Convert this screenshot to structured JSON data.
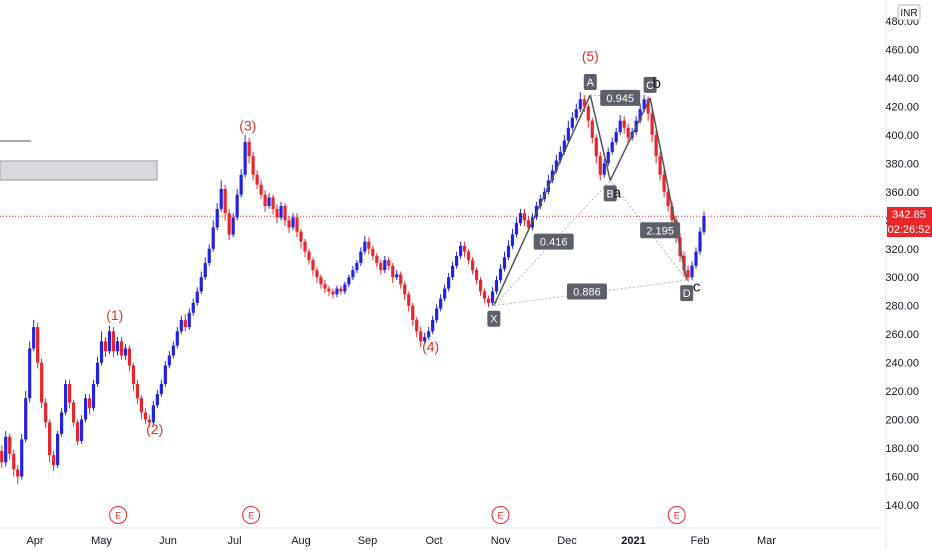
{
  "currency": "INR",
  "price_label": "342.85",
  "countdown_label": "02:26:52",
  "earnings_marker": "E",
  "colors": {
    "up": "#2424e0",
    "down": "#e8262b",
    "harmonic_line": "#555555",
    "harmonic_dotted": "#b3b3b3",
    "wave_label": "#e0332b",
    "price_line": "#e8262b",
    "axis_text": "#131722"
  },
  "chart_data": {
    "type": "candlestick",
    "title": "",
    "x_ticks": [
      "Apr",
      "May",
      "Jun",
      "Jul",
      "Aug",
      "Sep",
      "Oct",
      "Nov",
      "Dec",
      "2021",
      "Feb",
      "Mar"
    ],
    "y_ticks": [
      140,
      160,
      180,
      200,
      220,
      240,
      260,
      280,
      300,
      320,
      340,
      360,
      380,
      400,
      420,
      440,
      460,
      480
    ],
    "ylim": [
      128,
      488
    ],
    "grid": false,
    "last_price": 342.85,
    "elliott_waves": [
      {
        "label": "(1)",
        "month": 1.2,
        "value": 270
      },
      {
        "label": "(2)",
        "month": 1.8,
        "value": 190
      },
      {
        "label": "(3)",
        "month": 3.2,
        "value": 403
      },
      {
        "label": "(4)",
        "month": 5.95,
        "value": 248
      },
      {
        "label": "(5)",
        "month": 8.35,
        "value": 452
      },
      {
        "label": "a",
        "month": 8.75,
        "value": 356
      },
      {
        "label": "b",
        "month": 9.35,
        "value": 433
      },
      {
        "label": "c",
        "month": 9.95,
        "value": 290
      }
    ],
    "harmonic_pattern": {
      "points": [
        {
          "label": "X",
          "month": 6.9,
          "value": 280
        },
        {
          "label": "A",
          "month": 8.35,
          "value": 428
        },
        {
          "label": "B",
          "month": 8.65,
          "value": 368
        },
        {
          "label": "C",
          "month": 9.25,
          "value": 426
        },
        {
          "label": "D",
          "month": 9.8,
          "value": 298
        }
      ],
      "ratios": [
        {
          "label": "0.416",
          "month": 7.8,
          "value": 325
        },
        {
          "label": "0.945",
          "month": 8.8,
          "value": 426
        },
        {
          "label": "2.195",
          "month": 9.4,
          "value": 333
        },
        {
          "label": "0.886",
          "month": 8.3,
          "value": 290
        }
      ]
    },
    "earnings_events": [
      1.25,
      3.25,
      7.0,
      9.65
    ],
    "candles": [
      [
        -0.5,
        178,
        170,
        182,
        166
      ],
      [
        -0.44,
        170,
        188,
        192,
        167
      ],
      [
        -0.38,
        188,
        176,
        190,
        172
      ],
      [
        -0.32,
        176,
        165,
        179,
        160
      ],
      [
        -0.26,
        165,
        160,
        168,
        155
      ],
      [
        -0.2,
        160,
        186,
        190,
        158
      ],
      [
        -0.14,
        186,
        215,
        220,
        184
      ],
      [
        -0.08,
        215,
        250,
        255,
        212
      ],
      [
        -0.02,
        250,
        265,
        270,
        248
      ],
      [
        0.04,
        265,
        240,
        268,
        236
      ],
      [
        0.1,
        240,
        212,
        243,
        208
      ],
      [
        0.16,
        212,
        198,
        215,
        194
      ],
      [
        0.22,
        198,
        175,
        200,
        170
      ],
      [
        0.28,
        175,
        168,
        178,
        164
      ],
      [
        0.34,
        168,
        190,
        192,
        166
      ],
      [
        0.4,
        190,
        205,
        208,
        188
      ],
      [
        0.46,
        205,
        225,
        228,
        203
      ],
      [
        0.52,
        225,
        212,
        228,
        208
      ],
      [
        0.58,
        212,
        198,
        214,
        195
      ],
      [
        0.64,
        198,
        185,
        200,
        182
      ],
      [
        0.7,
        185,
        200,
        203,
        183
      ],
      [
        0.76,
        200,
        215,
        218,
        198
      ],
      [
        0.82,
        215,
        208,
        218,
        204
      ],
      [
        0.88,
        208,
        225,
        228,
        206
      ],
      [
        0.94,
        225,
        240,
        244,
        223
      ],
      [
        1.0,
        240,
        255,
        262,
        238
      ],
      [
        1.06,
        255,
        248,
        258,
        244
      ],
      [
        1.12,
        248,
        262,
        266,
        246
      ],
      [
        1.18,
        262,
        248,
        265,
        244
      ],
      [
        1.24,
        248,
        255,
        258,
        245
      ],
      [
        1.3,
        255,
        245,
        258,
        242
      ],
      [
        1.36,
        245,
        250,
        253,
        242
      ],
      [
        1.42,
        250,
        238,
        252,
        234
      ],
      [
        1.48,
        238,
        225,
        240,
        220
      ],
      [
        1.54,
        225,
        215,
        228,
        211
      ],
      [
        1.6,
        215,
        205,
        217,
        200
      ],
      [
        1.66,
        205,
        200,
        208,
        197
      ],
      [
        1.72,
        200,
        198,
        203,
        195
      ],
      [
        1.78,
        198,
        210,
        213,
        196
      ],
      [
        1.84,
        210,
        218,
        221,
        208
      ],
      [
        1.9,
        218,
        225,
        228,
        216
      ],
      [
        1.96,
        225,
        238,
        241,
        223
      ],
      [
        2.02,
        238,
        245,
        248,
        236
      ],
      [
        2.08,
        245,
        252,
        255,
        243
      ],
      [
        2.14,
        252,
        262,
        265,
        250
      ],
      [
        2.2,
        262,
        270,
        273,
        260
      ],
      [
        2.26,
        270,
        265,
        274,
        262
      ],
      [
        2.32,
        265,
        275,
        278,
        263
      ],
      [
        2.38,
        275,
        282,
        285,
        273
      ],
      [
        2.44,
        282,
        290,
        293,
        280
      ],
      [
        2.5,
        290,
        300,
        304,
        288
      ],
      [
        2.56,
        300,
        310,
        314,
        298
      ],
      [
        2.62,
        310,
        320,
        323,
        308
      ],
      [
        2.68,
        320,
        335,
        340,
        318
      ],
      [
        2.74,
        335,
        348,
        352,
        333
      ],
      [
        2.8,
        348,
        362,
        368,
        346
      ],
      [
        2.86,
        362,
        345,
        365,
        340
      ],
      [
        2.92,
        345,
        330,
        348,
        326
      ],
      [
        2.98,
        330,
        342,
        345,
        328
      ],
      [
        3.04,
        342,
        358,
        362,
        340
      ],
      [
        3.1,
        358,
        372,
        376,
        356
      ],
      [
        3.16,
        372,
        395,
        400,
        370
      ],
      [
        3.22,
        395,
        385,
        398,
        380
      ],
      [
        3.28,
        385,
        372,
        388,
        368
      ],
      [
        3.34,
        372,
        365,
        375,
        362
      ],
      [
        3.4,
        365,
        358,
        368,
        355
      ],
      [
        3.46,
        358,
        350,
        361,
        346
      ],
      [
        3.52,
        350,
        356,
        359,
        348
      ],
      [
        3.58,
        356,
        348,
        358,
        344
      ],
      [
        3.64,
        348,
        342,
        351,
        338
      ],
      [
        3.7,
        342,
        350,
        353,
        340
      ],
      [
        3.76,
        350,
        340,
        352,
        336
      ],
      [
        3.82,
        340,
        335,
        343,
        331
      ],
      [
        3.88,
        335,
        342,
        345,
        333
      ],
      [
        3.94,
        342,
        332,
        345,
        328
      ],
      [
        4.0,
        332,
        325,
        334,
        320
      ],
      [
        4.06,
        325,
        318,
        327,
        314
      ],
      [
        4.12,
        318,
        312,
        320,
        309
      ],
      [
        4.18,
        312,
        305,
        314,
        301
      ],
      [
        4.24,
        305,
        300,
        307,
        296
      ],
      [
        4.3,
        300,
        295,
        302,
        292
      ],
      [
        4.36,
        295,
        292,
        298,
        289
      ],
      [
        4.42,
        292,
        290,
        294,
        287
      ],
      [
        4.48,
        290,
        288,
        292,
        285
      ],
      [
        4.54,
        288,
        292,
        294,
        286
      ],
      [
        4.6,
        292,
        290,
        294,
        288
      ],
      [
        4.66,
        290,
        295,
        297,
        288
      ],
      [
        4.72,
        295,
        300,
        302,
        293
      ],
      [
        4.78,
        300,
        305,
        308,
        298
      ],
      [
        4.84,
        305,
        310,
        312,
        303
      ],
      [
        4.9,
        310,
        318,
        321,
        308
      ],
      [
        4.96,
        318,
        325,
        329,
        316
      ],
      [
        5.02,
        325,
        320,
        328,
        316
      ],
      [
        5.08,
        320,
        315,
        322,
        312
      ],
      [
        5.14,
        315,
        310,
        317,
        307
      ],
      [
        5.2,
        310,
        305,
        312,
        302
      ],
      [
        5.26,
        305,
        312,
        315,
        303
      ],
      [
        5.32,
        312,
        308,
        314,
        305
      ],
      [
        5.38,
        308,
        300,
        310,
        296
      ],
      [
        5.44,
        300,
        302,
        305,
        298
      ],
      [
        5.5,
        302,
        295,
        304,
        292
      ],
      [
        5.56,
        295,
        288,
        297,
        284
      ],
      [
        5.62,
        288,
        280,
        290,
        276
      ],
      [
        5.68,
        280,
        270,
        282,
        266
      ],
      [
        5.74,
        270,
        262,
        272,
        258
      ],
      [
        5.8,
        262,
        255,
        265,
        251
      ],
      [
        5.86,
        255,
        258,
        261,
        253
      ],
      [
        5.92,
        258,
        262,
        265,
        256
      ],
      [
        5.98,
        262,
        270,
        273,
        260
      ],
      [
        6.04,
        270,
        278,
        281,
        268
      ],
      [
        6.1,
        278,
        285,
        288,
        276
      ],
      [
        6.16,
        285,
        292,
        295,
        283
      ],
      [
        6.22,
        292,
        300,
        303,
        290
      ],
      [
        6.28,
        300,
        308,
        311,
        298
      ],
      [
        6.34,
        308,
        315,
        318,
        306
      ],
      [
        6.4,
        315,
        322,
        325,
        313
      ],
      [
        6.46,
        322,
        318,
        325,
        314
      ],
      [
        6.52,
        318,
        312,
        320,
        309
      ],
      [
        6.58,
        312,
        305,
        314,
        302
      ],
      [
        6.64,
        305,
        298,
        307,
        295
      ],
      [
        6.7,
        298,
        290,
        300,
        287
      ],
      [
        6.76,
        290,
        285,
        292,
        282
      ],
      [
        6.82,
        285,
        282,
        287,
        279
      ],
      [
        6.88,
        282,
        290,
        293,
        280
      ],
      [
        6.94,
        290,
        298,
        301,
        288
      ],
      [
        7.0,
        298,
        306,
        309,
        296
      ],
      [
        7.06,
        306,
        314,
        318,
        304
      ],
      [
        7.12,
        314,
        322,
        326,
        312
      ],
      [
        7.18,
        322,
        330,
        334,
        320
      ],
      [
        7.24,
        330,
        338,
        342,
        328
      ],
      [
        7.3,
        338,
        345,
        348,
        336
      ],
      [
        7.36,
        345,
        340,
        348,
        336
      ],
      [
        7.42,
        340,
        335,
        343,
        332
      ],
      [
        7.48,
        335,
        342,
        345,
        333
      ],
      [
        7.54,
        342,
        350,
        353,
        340
      ],
      [
        7.6,
        350,
        355,
        358,
        348
      ],
      [
        7.66,
        355,
        360,
        363,
        353
      ],
      [
        7.72,
        360,
        368,
        372,
        358
      ],
      [
        7.78,
        368,
        375,
        379,
        366
      ],
      [
        7.84,
        375,
        382,
        386,
        373
      ],
      [
        7.9,
        382,
        388,
        392,
        380
      ],
      [
        7.96,
        388,
        396,
        400,
        386
      ],
      [
        8.02,
        396,
        405,
        410,
        394
      ],
      [
        8.08,
        405,
        412,
        416,
        403
      ],
      [
        8.14,
        412,
        418,
        422,
        410
      ],
      [
        8.2,
        418,
        425,
        430,
        416
      ],
      [
        8.26,
        425,
        420,
        428,
        416
      ],
      [
        8.32,
        420,
        410,
        422,
        405
      ],
      [
        8.38,
        410,
        398,
        412,
        394
      ],
      [
        8.44,
        398,
        385,
        400,
        380
      ],
      [
        8.5,
        385,
        372,
        388,
        368
      ],
      [
        8.56,
        372,
        380,
        383,
        370
      ],
      [
        8.62,
        380,
        388,
        391,
        378
      ],
      [
        8.68,
        388,
        395,
        398,
        386
      ],
      [
        8.74,
        395,
        402,
        405,
        393
      ],
      [
        8.8,
        402,
        410,
        414,
        400
      ],
      [
        8.86,
        410,
        405,
        413,
        401
      ],
      [
        8.92,
        405,
        398,
        408,
        394
      ],
      [
        8.98,
        398,
        402,
        405,
        396
      ],
      [
        9.04,
        402,
        410,
        413,
        400
      ],
      [
        9.1,
        410,
        418,
        422,
        408
      ],
      [
        9.16,
        418,
        425,
        428,
        416
      ],
      [
        9.22,
        425,
        415,
        427,
        410
      ],
      [
        9.28,
        415,
        400,
        418,
        395
      ],
      [
        9.34,
        400,
        385,
        403,
        380
      ],
      [
        9.4,
        385,
        372,
        388,
        368
      ],
      [
        9.46,
        372,
        360,
        375,
        356
      ],
      [
        9.52,
        360,
        350,
        363,
        346
      ],
      [
        9.58,
        350,
        340,
        353,
        336
      ],
      [
        9.64,
        340,
        328,
        343,
        324
      ],
      [
        9.7,
        328,
        315,
        331,
        311
      ],
      [
        9.76,
        315,
        305,
        318,
        301
      ],
      [
        9.82,
        305,
        300,
        308,
        297
      ],
      [
        9.88,
        300,
        308,
        311,
        298
      ],
      [
        9.94,
        308,
        318,
        321,
        306
      ],
      [
        10.0,
        318,
        332,
        335,
        316
      ],
      [
        10.06,
        332,
        342.85,
        346,
        330
      ]
    ]
  }
}
